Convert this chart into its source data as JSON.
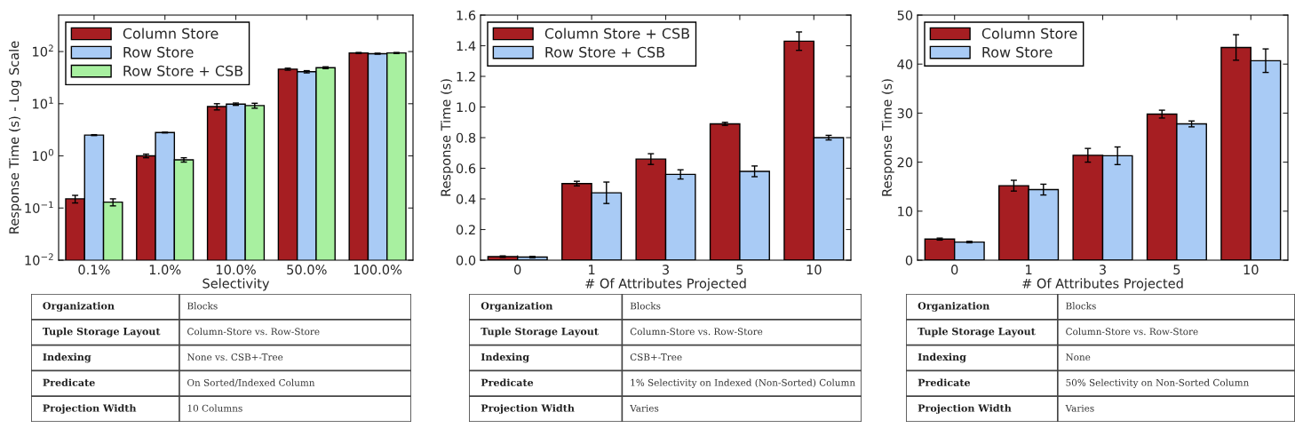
{
  "chart_data": [
    {
      "type": "bar",
      "xlabel": "Selectivity",
      "ylabel": "Response Time (s) - Log Scale",
      "log": "y",
      "legend": "top left",
      "grid": false,
      "categories": [
        "0.1%",
        "1.0%",
        "10.0%",
        "50.0%",
        "100.0%"
      ],
      "ylim": [
        0.01,
        500
      ],
      "yticks": [
        {
          "value": 0.01,
          "label": "10$^{−2}$"
        },
        {
          "value": 0.1,
          "label": "10$^{−1}$"
        },
        {
          "value": 1,
          "label": "10$^{0}$"
        },
        {
          "value": 10,
          "label": "10$^{1}$"
        },
        {
          "value": 100,
          "label": "10$^{2}$"
        }
      ],
      "series": [
        {
          "name": "Column Store",
          "color": "#a61e22",
          "values": [
            0.15,
            1.0,
            8.8,
            46,
            94
          ],
          "errors": [
            0.025,
            0.08,
            1.2,
            2,
            2
          ]
        },
        {
          "name": "Row Store",
          "color": "#a9cbf5",
          "values": [
            2.5,
            2.8,
            9.8,
            41,
            91
          ],
          "errors": [
            0.05,
            0.05,
            0.5,
            2,
            2
          ]
        },
        {
          "name": "Row Store + CSB",
          "color": "#a8f0a0",
          "values": [
            0.13,
            0.84,
            9.2,
            49,
            94
          ],
          "errors": [
            0.02,
            0.08,
            1.0,
            2,
            2
          ]
        }
      ]
    },
    {
      "type": "bar",
      "xlabel": "# Of Attributes Projected",
      "ylabel": "Response Time (s)",
      "legend": "top left",
      "grid": false,
      "categories": [
        "0",
        "1",
        "3",
        "5",
        "10"
      ],
      "ylim": [
        0,
        1.6
      ],
      "yticks": [
        {
          "value": 0,
          "label": "0.0"
        },
        0.2,
        0.4,
        0.6,
        0.8,
        {
          "value": 1.0,
          "label": "1.0"
        },
        1.2,
        1.4,
        1.6
      ],
      "series": [
        {
          "name": "Column Store + CSB",
          "color": "#a61e22",
          "values": [
            0.023,
            0.5,
            0.66,
            0.89,
            1.43
          ],
          "errors": [
            0.005,
            0.015,
            0.035,
            0.01,
            0.06
          ]
        },
        {
          "name": "Row Store + CSB",
          "color": "#a9cbf5",
          "values": [
            0.02,
            0.44,
            0.56,
            0.58,
            0.8
          ],
          "errors": [
            0.005,
            0.07,
            0.03,
            0.035,
            0.015
          ]
        }
      ]
    },
    {
      "type": "bar",
      "xlabel": "# Of Attributes Projected",
      "ylabel": "Response Time (s)",
      "legend": "top left",
      "grid": false,
      "categories": [
        "0",
        "1",
        "3",
        "5",
        "10"
      ],
      "ylim": [
        0,
        50
      ],
      "yticks": [
        0,
        10,
        20,
        30,
        40,
        50
      ],
      "series": [
        {
          "name": "Column Store",
          "color": "#a61e22",
          "values": [
            4.3,
            15.2,
            21.4,
            29.8,
            43.4
          ],
          "errors": [
            0.2,
            1.1,
            1.4,
            0.8,
            2.6
          ]
        },
        {
          "name": "Row Store",
          "color": "#a9cbf5",
          "values": [
            3.7,
            14.4,
            21.3,
            27.8,
            40.7
          ],
          "errors": [
            0.15,
            1.1,
            1.8,
            0.6,
            2.4
          ]
        }
      ]
    },
    {
      "type": "other",
      "y_categories": [
        "Organization",
        "Tuple Storage Layout",
        "Indexing",
        "Predicate",
        "Projection Width"
      ],
      "cell_labels": [
        [
          "Blocks"
        ],
        [
          "Column-Store vs. Row-Store"
        ],
        [
          "None vs. CSB+-Tree"
        ],
        [
          "On Sorted/Indexed Column"
        ],
        [
          "10 Columns"
        ]
      ]
    },
    {
      "type": "other",
      "y_categories": [
        "Organization",
        "Tuple Storage Layout",
        "Indexing",
        "Predicate",
        "Projection Width"
      ],
      "cell_labels": [
        [
          "Blocks"
        ],
        [
          "Column-Store vs. Row-Store"
        ],
        [
          "CSB+-Tree"
        ],
        [
          "1% Selectivity on Indexed (Non-Sorted) Column"
        ],
        [
          "Varies"
        ]
      ]
    },
    {
      "type": "other",
      "y_categories": [
        "Organization",
        "Tuple Storage Layout",
        "Indexing",
        "Predicate",
        "Projection Width"
      ],
      "cell_labels": [
        [
          "Blocks"
        ],
        [
          "Column-Store vs. Row-Store"
        ],
        [
          "None"
        ],
        [
          "50% Selectivity on Non-Sorted Column"
        ],
        [
          "Varies"
        ]
      ]
    }
  ]
}
